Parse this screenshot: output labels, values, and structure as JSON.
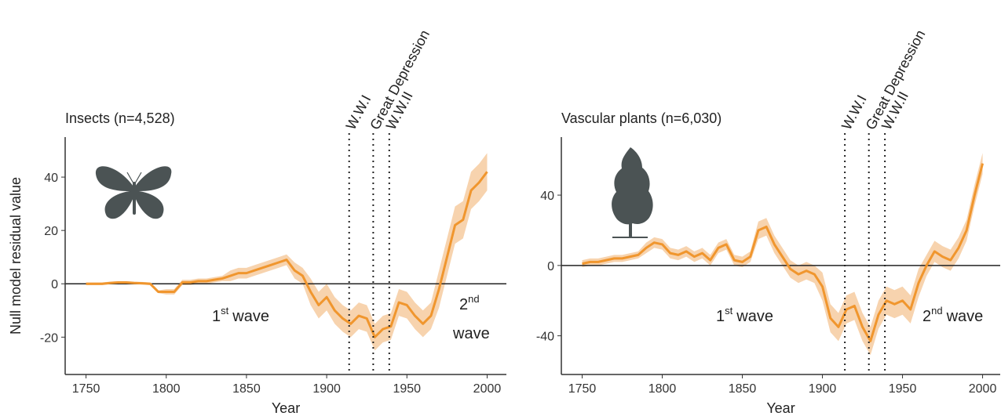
{
  "chart_data": [
    {
      "type": "line",
      "title": "Insects (n=4,528)",
      "xlabel": "Year",
      "ylabel": "Null model residual value",
      "x": [
        1750,
        1755,
        1760,
        1765,
        1770,
        1775,
        1780,
        1785,
        1790,
        1795,
        1800,
        1805,
        1810,
        1815,
        1820,
        1825,
        1830,
        1835,
        1840,
        1845,
        1850,
        1855,
        1860,
        1865,
        1870,
        1875,
        1880,
        1885,
        1890,
        1895,
        1900,
        1905,
        1910,
        1915,
        1920,
        1925,
        1930,
        1935,
        1940,
        1945,
        1950,
        1955,
        1960,
        1965,
        1970,
        1975,
        1980,
        1985,
        1990,
        1995,
        2000
      ],
      "series": [
        {
          "color": "#f0962e",
          "band_color": "#f7d3ae",
          "values": [
            0,
            0,
            0,
            0.3,
            0.5,
            0.5,
            0.3,
            0.2,
            0,
            -3,
            -3,
            -3,
            0.5,
            0.5,
            1,
            1,
            1.5,
            2,
            3,
            4,
            4,
            5,
            6,
            7,
            8,
            9,
            5,
            3,
            -3,
            -8,
            -5,
            -10,
            -13,
            -15,
            -12,
            -13,
            -20,
            -17,
            -16,
            -7,
            -8,
            -12,
            -15,
            -12,
            -2,
            10,
            22,
            24,
            35,
            38,
            42
          ],
          "lower": [
            -0.5,
            -0.5,
            -0.5,
            -0.2,
            0,
            0,
            -0.2,
            -0.3,
            -0.5,
            -3.5,
            -4,
            -4,
            -0.5,
            -0.5,
            0,
            0,
            0.5,
            1,
            1,
            2,
            2,
            3,
            4,
            5,
            6,
            7,
            2,
            0,
            -8,
            -13,
            -10,
            -15,
            -18,
            -20,
            -17,
            -18,
            -25,
            -22,
            -21,
            -12,
            -13,
            -17,
            -20,
            -17,
            -9,
            3,
            15,
            17,
            28,
            31,
            35
          ],
          "upper": [
            0.5,
            0.5,
            0.5,
            0.8,
            1,
            1,
            0.8,
            0.7,
            0.5,
            -2.5,
            -2,
            -2,
            1.5,
            1.5,
            2,
            2,
            2.5,
            3,
            5,
            6,
            6,
            7,
            8,
            9,
            10,
            11,
            8,
            6,
            2,
            -3,
            0,
            -5,
            -8,
            -10,
            -7,
            -8,
            -15,
            -12,
            -11,
            -2,
            -3,
            -7,
            -10,
            -7,
            5,
            17,
            29,
            31,
            42,
            45,
            49
          ]
        }
      ],
      "xlim": [
        1737,
        2012
      ],
      "xticks": [
        1750,
        1800,
        1850,
        1900,
        1950,
        2000
      ],
      "ylim": [
        -34,
        55
      ],
      "yticks": [
        -20,
        0,
        20,
        40
      ],
      "hline": 0,
      "events": [
        {
          "x": 1914,
          "label": "W.W.I"
        },
        {
          "x": 1929,
          "label": "Great Depression"
        },
        {
          "x": 1939,
          "label": "W.W.II"
        }
      ],
      "annotations": [
        {
          "text": "1",
          "sup": "st",
          "tail": "wave"
        },
        {
          "text": "2",
          "sup": "nd",
          "tail": "wave"
        }
      ]
    },
    {
      "type": "line",
      "title": "Vascular plants (n=6,030)",
      "xlabel": "Year",
      "x": [
        1750,
        1755,
        1760,
        1765,
        1770,
        1775,
        1780,
        1785,
        1790,
        1795,
        1800,
        1805,
        1810,
        1815,
        1820,
        1825,
        1830,
        1835,
        1840,
        1845,
        1850,
        1855,
        1860,
        1865,
        1870,
        1875,
        1880,
        1885,
        1890,
        1895,
        1900,
        1905,
        1910,
        1915,
        1920,
        1925,
        1930,
        1935,
        1940,
        1945,
        1950,
        1955,
        1960,
        1965,
        1970,
        1975,
        1980,
        1985,
        1990,
        1995,
        2000
      ],
      "series": [
        {
          "color": "#f0962e",
          "band_color": "#f7d3ae",
          "values": [
            1,
            2,
            2,
            3,
            4,
            4,
            5,
            6,
            10,
            13,
            12,
            7,
            6,
            8,
            5,
            7,
            3,
            10,
            12,
            3,
            2,
            5,
            20,
            22,
            12,
            5,
            -2,
            -5,
            -3,
            -5,
            -12,
            -30,
            -35,
            -25,
            -23,
            -35,
            -43,
            -28,
            -20,
            -22,
            -20,
            -25,
            -10,
            0,
            8,
            5,
            3,
            10,
            20,
            40,
            58
          ],
          "lower": [
            -1,
            0,
            0,
            1,
            2,
            2,
            3,
            4,
            7,
            10,
            9,
            4,
            3,
            5,
            2,
            4,
            0,
            7,
            9,
            0,
            -1,
            2,
            15,
            17,
            7,
            0,
            -7,
            -10,
            -8,
            -10,
            -20,
            -38,
            -43,
            -33,
            -31,
            -43,
            -51,
            -36,
            -28,
            -30,
            -28,
            -33,
            -18,
            -6,
            2,
            -1,
            -3,
            4,
            14,
            34,
            52
          ],
          "upper": [
            3,
            4,
            4,
            5,
            6,
            6,
            7,
            8,
            13,
            16,
            15,
            10,
            9,
            11,
            8,
            10,
            6,
            13,
            15,
            6,
            5,
            8,
            25,
            27,
            17,
            10,
            3,
            0,
            2,
            0,
            -4,
            -22,
            -27,
            -17,
            -15,
            -27,
            -35,
            -20,
            -12,
            -14,
            -12,
            -17,
            -2,
            6,
            14,
            11,
            9,
            16,
            26,
            46,
            64
          ]
        }
      ],
      "xlim": [
        1737,
        2011
      ],
      "xticks": [
        1750,
        1800,
        1850,
        1900,
        1950,
        2000
      ],
      "ylim": [
        -62,
        73
      ],
      "yticks": [
        -40,
        0,
        40
      ],
      "hline": 0,
      "events": [
        {
          "x": 1914,
          "label": "W.W.I"
        },
        {
          "x": 1929,
          "label": "Great Depression"
        },
        {
          "x": 1939,
          "label": "W.W.II"
        }
      ],
      "annotations": [
        {
          "text": "1",
          "sup": "st",
          "tail": "wave"
        },
        {
          "text": "2",
          "sup": "nd",
          "tail": "wave"
        }
      ]
    }
  ]
}
